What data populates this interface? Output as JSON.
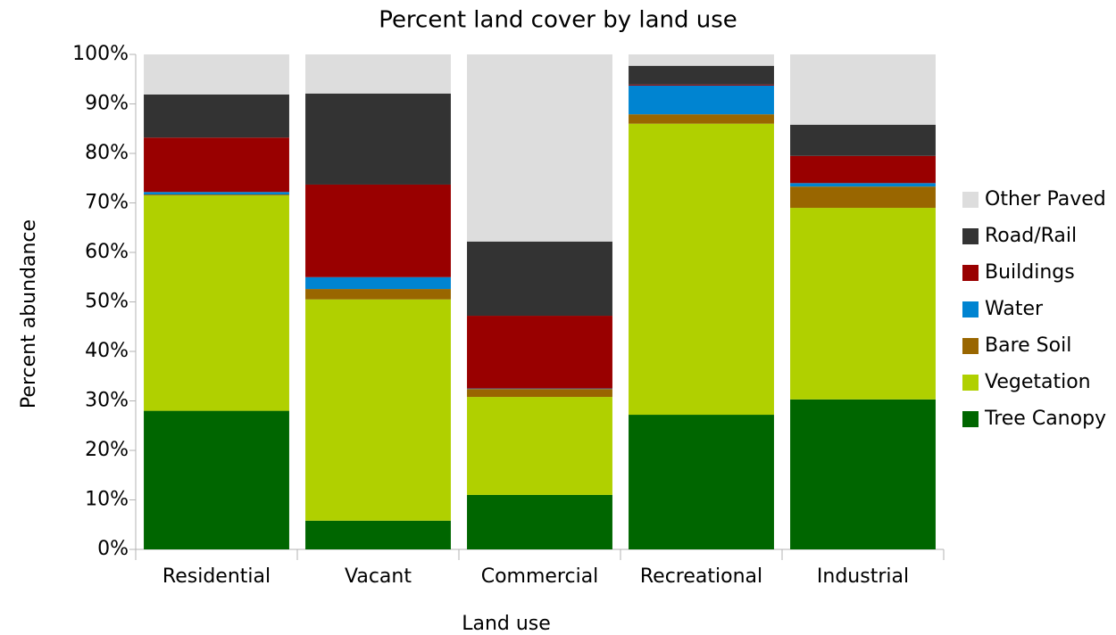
{
  "chart_data": {
    "type": "stacked_bar",
    "title": "Percent land cover by land use",
    "x_label": "Land use",
    "y_label": "Percent abundance",
    "categories": [
      "Residential",
      "Vacant",
      "Commercial",
      "Recreational",
      "Industrial"
    ],
    "series": [
      {
        "name": "Tree Canopy",
        "color": "#006600",
        "values": [
          28,
          5.8,
          11,
          27.2,
          30.3
        ]
      },
      {
        "name": "Vegetation",
        "color": "#b0d000",
        "values": [
          43.5,
          44.7,
          19.8,
          58.8,
          38.7
        ]
      },
      {
        "name": "Bare Soil",
        "color": "#996600",
        "values": [
          0.2,
          2.1,
          1.6,
          1.9,
          4.3
        ]
      },
      {
        "name": "Water",
        "color": "#0084d1",
        "values": [
          0.5,
          2.4,
          0.1,
          5.8,
          0.7
        ]
      },
      {
        "name": "Buildings",
        "color": "#990000",
        "values": [
          11,
          18.7,
          14.7,
          0.2,
          5.5
        ]
      },
      {
        "name": "Road/Rail",
        "color": "#333333",
        "values": [
          8.7,
          18.4,
          15,
          3.8,
          6.3
        ]
      },
      {
        "name": "Other Paved",
        "color": "#dddddd",
        "values": [
          8.1,
          7.9,
          37.8,
          2.3,
          14.2
        ]
      }
    ],
    "ylim": [
      0,
      100
    ],
    "yticks": [
      {
        "value": 0,
        "label": "0%"
      },
      {
        "value": 10,
        "label": "10%"
      },
      {
        "value": 20,
        "label": "20%"
      },
      {
        "value": 30,
        "label": "30%"
      },
      {
        "value": 40,
        "label": "40%"
      },
      {
        "value": 50,
        "label": "50%"
      },
      {
        "value": 60,
        "label": "60%"
      },
      {
        "value": 70,
        "label": "70%"
      },
      {
        "value": 80,
        "label": "80%"
      },
      {
        "value": 90,
        "label": "90%"
      },
      {
        "value": 100,
        "label": "100%"
      }
    ],
    "legend": "right"
  }
}
